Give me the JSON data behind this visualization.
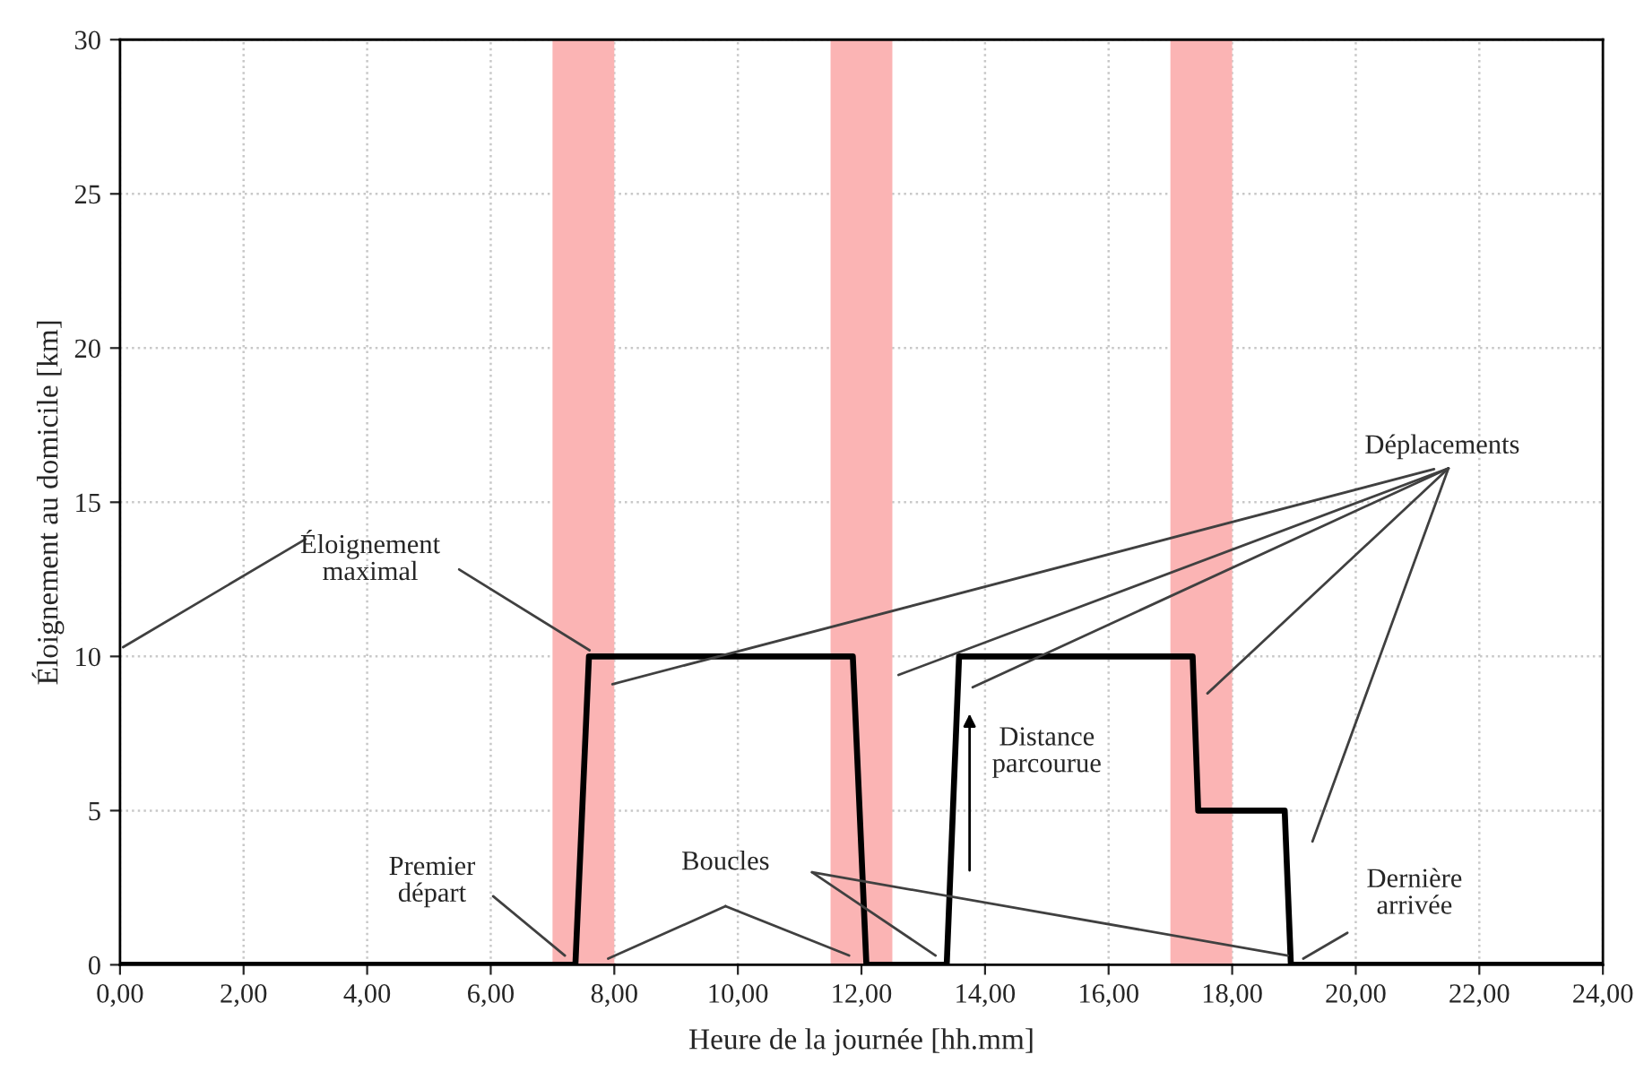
{
  "chart_data": {
    "type": "line",
    "xlabel": "Heure de la journée [hh.mm]",
    "ylabel": "Éloignement au domicile [km]",
    "series": [
      {
        "color": "#000000",
        "x": [
          0,
          7.37,
          7.59,
          11.86,
          12.08,
          13.38,
          13.58,
          17.36,
          17.45,
          18.85,
          18.95,
          24
        ],
        "values": [
          0,
          0,
          10,
          10,
          0,
          0,
          10,
          10,
          5,
          5,
          0,
          0
        ]
      }
    ],
    "bands": [
      {
        "axis": "x",
        "from": 7,
        "to": 8,
        "color": "#fbb4b4"
      },
      {
        "axis": "x",
        "from": 11.5,
        "to": 12.5,
        "color": "#fbb4b4"
      },
      {
        "axis": "x",
        "from": 17,
        "to": 18,
        "color": "#fbb4b4"
      }
    ],
    "annotations": [
      {
        "text": "Éloignement\nmaximal",
        "x": 7.6,
        "y": 10.2
      },
      {
        "text": "Déplacements",
        "x": 7.97,
        "y": 9.1
      },
      {
        "text": "Premier\ndépart",
        "x": 7.2,
        "y": 0.3
      },
      "Boucles",
      "Distance\nparcourue",
      {
        "text": "Dernière\narrivée",
        "x": 19.15,
        "y": 0.2
      }
    ],
    "xlim": [
      0,
      24
    ],
    "xticks": [
      {
        "value": 0,
        "label": "0,00"
      },
      {
        "value": 2,
        "label": "2,00"
      },
      {
        "value": 4,
        "label": "4,00"
      },
      {
        "value": 6,
        "label": "6,00"
      },
      {
        "value": 8,
        "label": "8,00"
      },
      {
        "value": 10,
        "label": "10,00"
      },
      {
        "value": 12,
        "label": "12,00"
      },
      {
        "value": 14,
        "label": "14,00"
      },
      {
        "value": 16,
        "label": "16,00"
      },
      {
        "value": 18,
        "label": "18,00"
      },
      {
        "value": 20,
        "label": "20,00"
      },
      {
        "value": 22,
        "label": "22,00"
      },
      {
        "value": 24,
        "label": "24,00"
      }
    ],
    "ylim": [
      0,
      30
    ],
    "yticks": [
      0,
      5,
      10,
      15,
      20,
      25,
      30
    ],
    "grid": true,
    "marker": "none",
    "line_style": "solid"
  }
}
